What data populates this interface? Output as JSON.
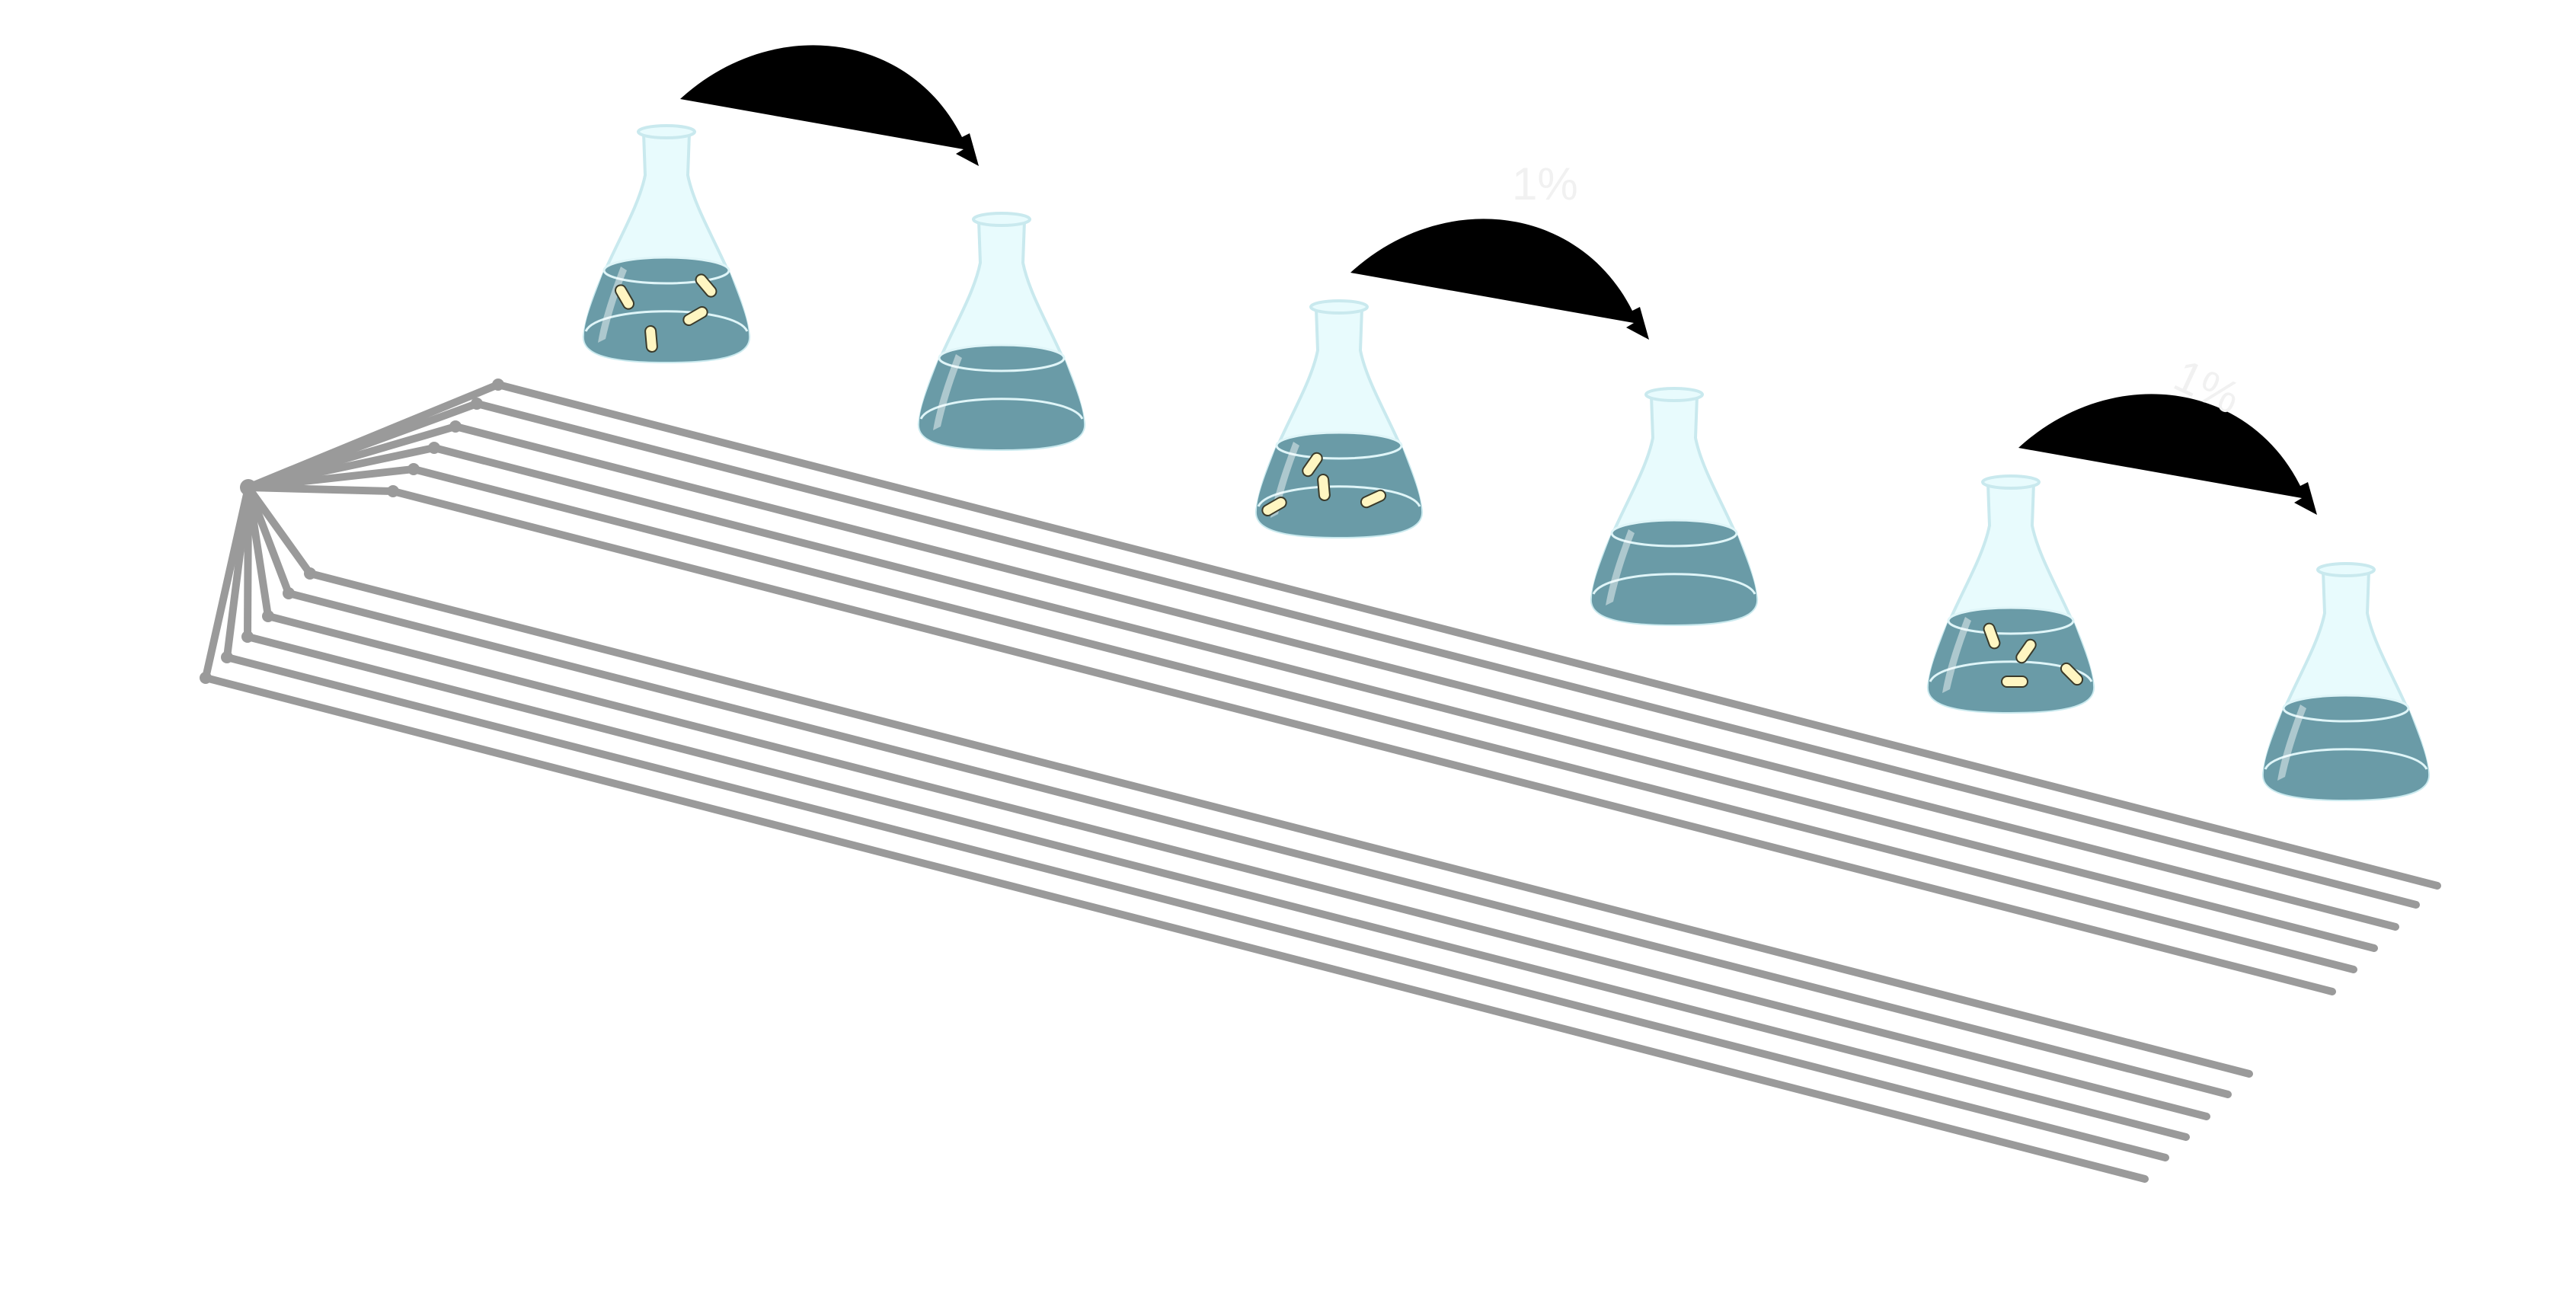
{
  "diagram": {
    "transfer_label": "1%",
    "colors": {
      "background": "#ffffff",
      "tree": "#9a9a9a",
      "medium": "#6a9ba7",
      "glass": "#e8fbfd",
      "glass_outline": "#c9e9ee",
      "bacteria": "#fff6c2",
      "bacteria_outline": "#3a3a2a",
      "arrow": "#000000"
    },
    "flasks": [
      {
        "name": "flask-1-inoculated",
        "has_bacteria": true
      },
      {
        "name": "flask-2-fresh-medium",
        "has_bacteria": false
      },
      {
        "name": "flask-3-inoculated",
        "has_bacteria": true
      },
      {
        "name": "flask-4-fresh-medium",
        "has_bacteria": false
      },
      {
        "name": "flask-5-inoculated",
        "has_bacteria": true
      },
      {
        "name": "flask-6-fresh-medium",
        "has_bacteria": false
      }
    ],
    "transfer_arrows": [
      {
        "name": "transfer-arrow-1",
        "from": "flask-1-inoculated",
        "to": "flask-2-fresh-medium"
      },
      {
        "name": "transfer-arrow-2",
        "from": "flask-3-inoculated",
        "to": "flask-4-fresh-medium"
      },
      {
        "name": "transfer-arrow-3",
        "from": "flask-5-inoculated",
        "to": "flask-6-fresh-medium"
      }
    ],
    "tree": {
      "clades": 2,
      "leaves_per_clade": 6
    }
  }
}
